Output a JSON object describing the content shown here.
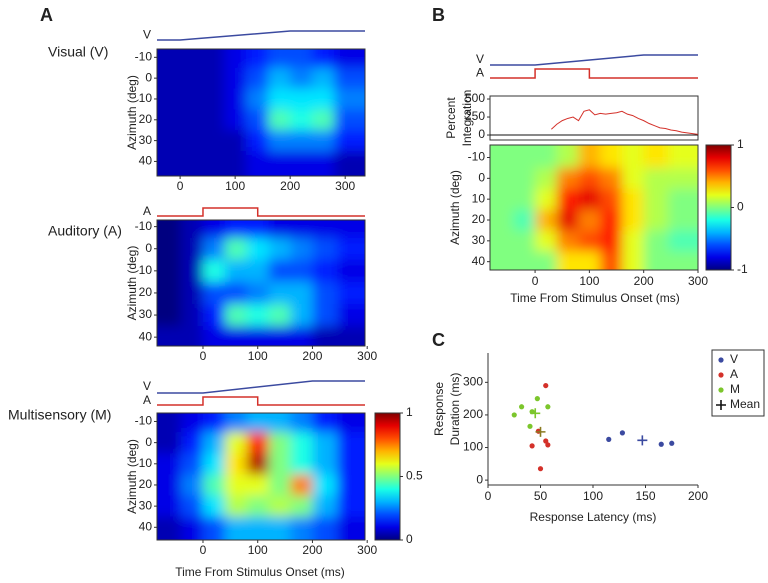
{
  "panel_labels": [
    "A",
    "B",
    "C"
  ],
  "chart_data": [
    {
      "type": "heatmap",
      "title": "Visual (V)",
      "stimuli": [
        "V"
      ],
      "ylabel": "Azimuth (deg)",
      "xlim": [
        -42,
        336
      ],
      "xticks": [
        0,
        100,
        200,
        300
      ],
      "ylim": [
        -14,
        47
      ],
      "yticks": [
        -10,
        0,
        10,
        20,
        30,
        40
      ],
      "x": [
        -20,
        20,
        60,
        100,
        140,
        180,
        220,
        260,
        300
      ],
      "y": [
        -10,
        0,
        10,
        20,
        30,
        40
      ],
      "zlim": [
        0,
        1
      ],
      "z": [
        [
          0.05,
          0.05,
          0.05,
          0.1,
          0.15,
          0.2,
          0.2,
          0.15,
          0.1
        ],
        [
          0.05,
          0.05,
          0.05,
          0.1,
          0.2,
          0.3,
          0.25,
          0.3,
          0.2
        ],
        [
          0.05,
          0.05,
          0.05,
          0.1,
          0.25,
          0.35,
          0.35,
          0.35,
          0.25
        ],
        [
          0.05,
          0.05,
          0.05,
          0.1,
          0.2,
          0.45,
          0.4,
          0.45,
          0.2
        ],
        [
          0.05,
          0.05,
          0.05,
          0.05,
          0.15,
          0.25,
          0.25,
          0.25,
          0.15
        ],
        [
          0.05,
          0.05,
          0.05,
          0.05,
          0.1,
          0.1,
          0.1,
          0.1,
          0.05
        ]
      ]
    },
    {
      "type": "heatmap",
      "title": "Auditory (A)",
      "stimuli": [
        "A"
      ],
      "ylabel": "Azimuth (deg)",
      "xlim": [
        -84,
        296
      ],
      "xticks": [
        0,
        100,
        200,
        300
      ],
      "ylim": [
        -13,
        44
      ],
      "yticks": [
        -10,
        0,
        10,
        20,
        30,
        40
      ],
      "x": [
        -60,
        -20,
        20,
        60,
        100,
        140,
        180,
        220,
        270
      ],
      "y": [
        -10,
        0,
        10,
        20,
        30,
        40
      ],
      "zlim": [
        0,
        1
      ],
      "z": [
        [
          0,
          0.05,
          0.1,
          0.15,
          0.15,
          0.1,
          0.1,
          0.1,
          0.1
        ],
        [
          0,
          0.05,
          0.25,
          0.45,
          0.35,
          0.3,
          0.25,
          0.2,
          0.15
        ],
        [
          0,
          0.05,
          0.4,
          0.3,
          0.3,
          0.2,
          0.2,
          0.15,
          0.1
        ],
        [
          0,
          0.05,
          0.2,
          0.2,
          0.25,
          0.3,
          0.3,
          0.2,
          0.15
        ],
        [
          0,
          0.05,
          0.15,
          0.45,
          0.4,
          0.45,
          0.3,
          0.2,
          0.1
        ],
        [
          0.05,
          0.05,
          0.1,
          0.1,
          0.1,
          0.1,
          0.1,
          0.05,
          0.05
        ]
      ]
    },
    {
      "type": "heatmap",
      "title": "Multisensory (M)",
      "stimuli": [
        "V",
        "A"
      ],
      "ylabel": "Azimuth (deg)",
      "xlabel": "Time From Stimulus Onset (ms)",
      "xlim": [
        -84,
        296
      ],
      "xticks": [
        0,
        100,
        200,
        300
      ],
      "ylim": [
        -14,
        46
      ],
      "yticks": [
        -10,
        0,
        10,
        20,
        30,
        40
      ],
      "x": [
        -60,
        -20,
        20,
        60,
        100,
        140,
        180,
        220,
        270
      ],
      "y": [
        -10,
        0,
        10,
        20,
        30,
        40
      ],
      "zlim": [
        0,
        1
      ],
      "colorbar_ticks": [
        0,
        0.5,
        1
      ],
      "z": [
        [
          0.05,
          0.1,
          0.15,
          0.25,
          0.3,
          0.3,
          0.25,
          0.15,
          0.1
        ],
        [
          0.05,
          0.15,
          0.3,
          0.6,
          0.85,
          0.5,
          0.4,
          0.3,
          0.15
        ],
        [
          0.1,
          0.2,
          0.35,
          0.65,
          0.95,
          0.5,
          0.4,
          0.3,
          0.15
        ],
        [
          0.1,
          0.25,
          0.45,
          0.6,
          0.6,
          0.5,
          0.75,
          0.35,
          0.15
        ],
        [
          0.1,
          0.2,
          0.35,
          0.55,
          0.5,
          0.55,
          0.5,
          0.3,
          0.15
        ],
        [
          0.05,
          0.1,
          0.2,
          0.3,
          0.3,
          0.3,
          0.25,
          0.2,
          0.1
        ]
      ]
    },
    {
      "type": "heatmap",
      "stimuli": [
        "V",
        "A"
      ],
      "ylabel": "Azimuth (deg)",
      "xlabel": "Time From Stimulus Onset (ms)",
      "xlim": [
        -83,
        300
      ],
      "xticks": [
        0,
        100,
        200,
        300
      ],
      "ylim": [
        -16,
        44
      ],
      "yticks": [
        -10,
        0,
        10,
        20,
        30,
        40
      ],
      "x": [
        -60,
        -20,
        20,
        60,
        100,
        140,
        180,
        220,
        270
      ],
      "y": [
        -10,
        0,
        10,
        20,
        30,
        40
      ],
      "zlim": [
        -1,
        1
      ],
      "colorbar_ticks": [
        -1,
        0,
        1
      ],
      "z": [
        [
          0,
          0,
          0,
          0.1,
          0.4,
          0.3,
          0.2,
          0.3,
          0.2
        ],
        [
          0,
          0,
          0.1,
          0.5,
          0.6,
          0.5,
          0.2,
          0.1,
          0.1
        ],
        [
          0,
          0,
          0.2,
          0.7,
          0.8,
          0.6,
          0.3,
          0.1,
          0
        ],
        [
          0,
          -0.1,
          0.4,
          0.8,
          0.5,
          0.7,
          0.3,
          0.1,
          0
        ],
        [
          0,
          0,
          0.2,
          0.5,
          0.6,
          0.7,
          0.2,
          0,
          -0.1
        ],
        [
          0,
          0,
          0,
          0.3,
          0.3,
          0.6,
          0.2,
          0,
          0
        ]
      ]
    },
    {
      "type": "line",
      "ylabel": [
        "Percent",
        "Integration"
      ],
      "color": "#d4312a",
      "xlim": [
        -83,
        300
      ],
      "ylim": [
        -69,
        542
      ],
      "yticks": [
        0,
        250,
        500
      ],
      "x": [
        30,
        40,
        50,
        60,
        70,
        80,
        90,
        100,
        110,
        120,
        130,
        140,
        150,
        160,
        170,
        180,
        190,
        200,
        210,
        220,
        230,
        240,
        250,
        260,
        270,
        280,
        290,
        300
      ],
      "values": [
        80,
        150,
        200,
        230,
        250,
        200,
        330,
        350,
        280,
        300,
        290,
        300,
        310,
        330,
        290,
        270,
        230,
        200,
        160,
        130,
        100,
        90,
        70,
        60,
        40,
        30,
        20,
        10
      ]
    },
    {
      "type": "scatter",
      "xlabel": "Response Latency (ms)",
      "ylabel": [
        "Response",
        "Duration (ms)"
      ],
      "xlim": [
        0,
        200
      ],
      "xticks": [
        0,
        50,
        100,
        150,
        200
      ],
      "ylim": [
        -15,
        390
      ],
      "yticks": [
        0,
        100,
        200,
        300
      ],
      "series": [
        {
          "name": "V",
          "color": "#3b4aa0",
          "x": [
            115,
            128,
            165,
            175
          ],
          "y": [
            125,
            145,
            110,
            113
          ]
        },
        {
          "name": "A",
          "color": "#d4312a",
          "x": [
            55,
            48,
            42,
            55,
            57,
            50
          ],
          "y": [
            290,
            150,
            105,
            120,
            108,
            35
          ]
        },
        {
          "name": "M",
          "color": "#7cc62c",
          "x": [
            25,
            32,
            47,
            57,
            40,
            42
          ],
          "y": [
            200,
            225,
            250,
            225,
            165,
            210
          ]
        }
      ],
      "mean": {
        "name": "Mean",
        "color": "#111111",
        "x": [
          147,
          50,
          45
        ],
        "y": [
          122,
          148,
          205
        ],
        "colors": [
          "#3b4aa0",
          "#8a7a20",
          "#7cc62c"
        ]
      }
    }
  ]
}
